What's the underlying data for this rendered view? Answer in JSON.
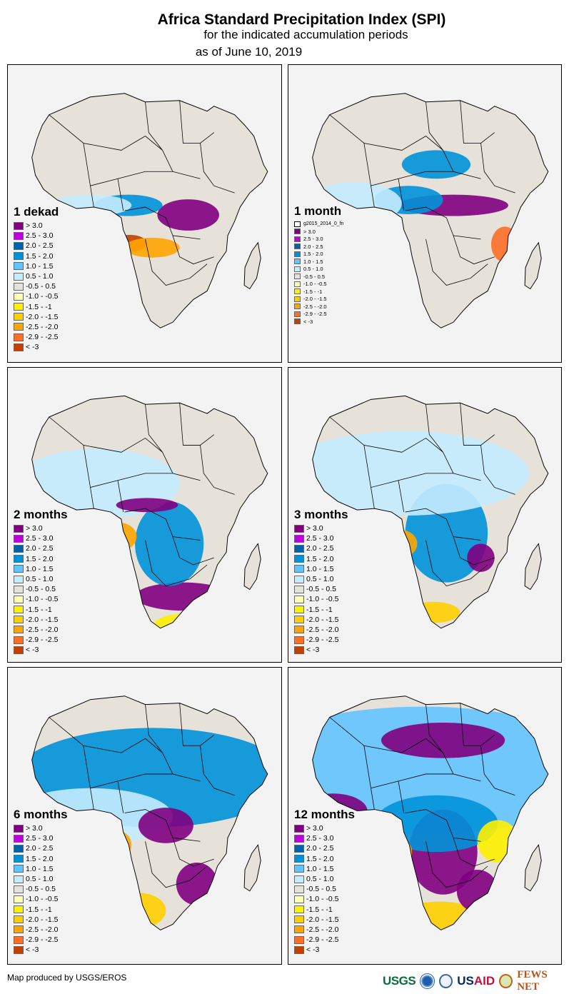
{
  "header": {
    "title": "Africa Standard Precipitation Index (SPI)",
    "subtitle": "for the indicated accumulation periods",
    "date_line": "as of June 10, 2019"
  },
  "legend_classes": [
    {
      "label": "> 3.0",
      "color": "#80007f"
    },
    {
      "label": "2.5 - 3.0",
      "color": "#bf00df"
    },
    {
      "label": "2.0 - 2.5",
      "color": "#0062a8"
    },
    {
      "label": "1.5 - 2.0",
      "color": "#0092d8"
    },
    {
      "label": "1.0 - 1.5",
      "color": "#62c4fe"
    },
    {
      "label": "0.5 - 1.0",
      "color": "#c4ecfe"
    },
    {
      "label": "-0.5 - 0.5",
      "color": "#e6e2d9"
    },
    {
      "label": "-1.0 - -0.5",
      "color": "#fefeb0"
    },
    {
      "label": "-1.5 - -1",
      "color": "#fef100"
    },
    {
      "label": "-2.0 - -1.5",
      "color": "#fecf00"
    },
    {
      "label": "-2.5 - -2.0",
      "color": "#fea500"
    },
    {
      "label": "-2.9 - -2.5",
      "color": "#fe6f27"
    },
    {
      "label": "< -3",
      "color": "#c24100"
    }
  ],
  "panels": [
    {
      "id": "dekad1",
      "title": "1 dekad",
      "extra_legend": null
    },
    {
      "id": "month1",
      "title": "1 month",
      "extra_legend": "g2015_2014_0_fn"
    },
    {
      "id": "months2",
      "title": "2 months",
      "extra_legend": null
    },
    {
      "id": "months3",
      "title": "3 months",
      "extra_legend": null
    },
    {
      "id": "months6",
      "title": "6 months",
      "extra_legend": null
    },
    {
      "id": "months12",
      "title": "12 months",
      "extra_legend": null
    }
  ],
  "footer": {
    "credit": "Map produced by USGS/EROS",
    "logos": {
      "usgs": "USGS",
      "usaid_a": "US",
      "usaid_b": "AID",
      "fews": "FEWS NET"
    }
  },
  "colors": {
    "ocean": "#f3f3f3",
    "land_neutral": "#e6e2d9",
    "border": "#000000"
  }
}
